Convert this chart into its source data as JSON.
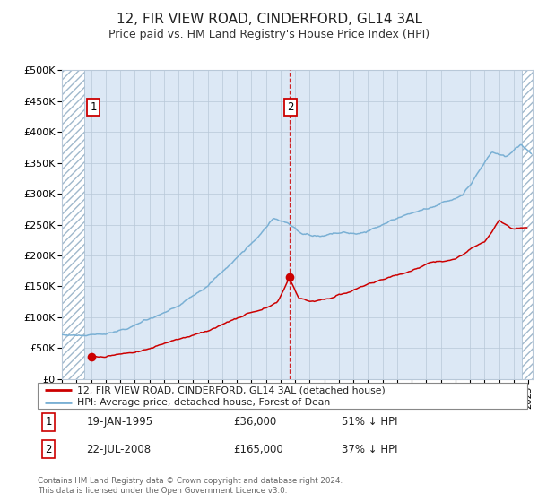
{
  "title": "12, FIR VIEW ROAD, CINDERFORD, GL14 3AL",
  "subtitle": "Price paid vs. HM Land Registry's House Price Index (HPI)",
  "ylim": [
    0,
    500000
  ],
  "yticks": [
    0,
    50000,
    100000,
    150000,
    200000,
    250000,
    300000,
    350000,
    400000,
    450000,
    500000
  ],
  "ytick_labels": [
    "£0",
    "£50K",
    "£100K",
    "£150K",
    "£200K",
    "£250K",
    "£300K",
    "£350K",
    "£400K",
    "£450K",
    "£500K"
  ],
  "xlim_start": 1993.0,
  "xlim_end": 2025.3,
  "property_color": "#cc0000",
  "hpi_color": "#7ab0d4",
  "marker1_date": 1995.05,
  "marker1_price": 36000,
  "marker2_date": 2008.6,
  "marker2_price": 165000,
  "hatch_left_end": 1994.55,
  "hatch_right_start": 2024.55,
  "legend_label1": "12, FIR VIEW ROAD, CINDERFORD, GL14 3AL (detached house)",
  "legend_label2": "HPI: Average price, detached house, Forest of Dean",
  "annotation1_label": "1",
  "annotation1_date": "19-JAN-1995",
  "annotation1_price": "£36,000",
  "annotation1_hpi": "51% ↓ HPI",
  "annotation2_label": "2",
  "annotation2_date": "22-JUL-2008",
  "annotation2_price": "£165,000",
  "annotation2_hpi": "37% ↓ HPI",
  "footer": "Contains HM Land Registry data © Crown copyright and database right 2024.\nThis data is licensed under the Open Government Licence v3.0.",
  "bg_color": "#dce8f5",
  "hatch_bg_color": "#ffffff",
  "grid_color": "#b8c8d8",
  "title_fontsize": 11,
  "subtitle_fontsize": 9
}
